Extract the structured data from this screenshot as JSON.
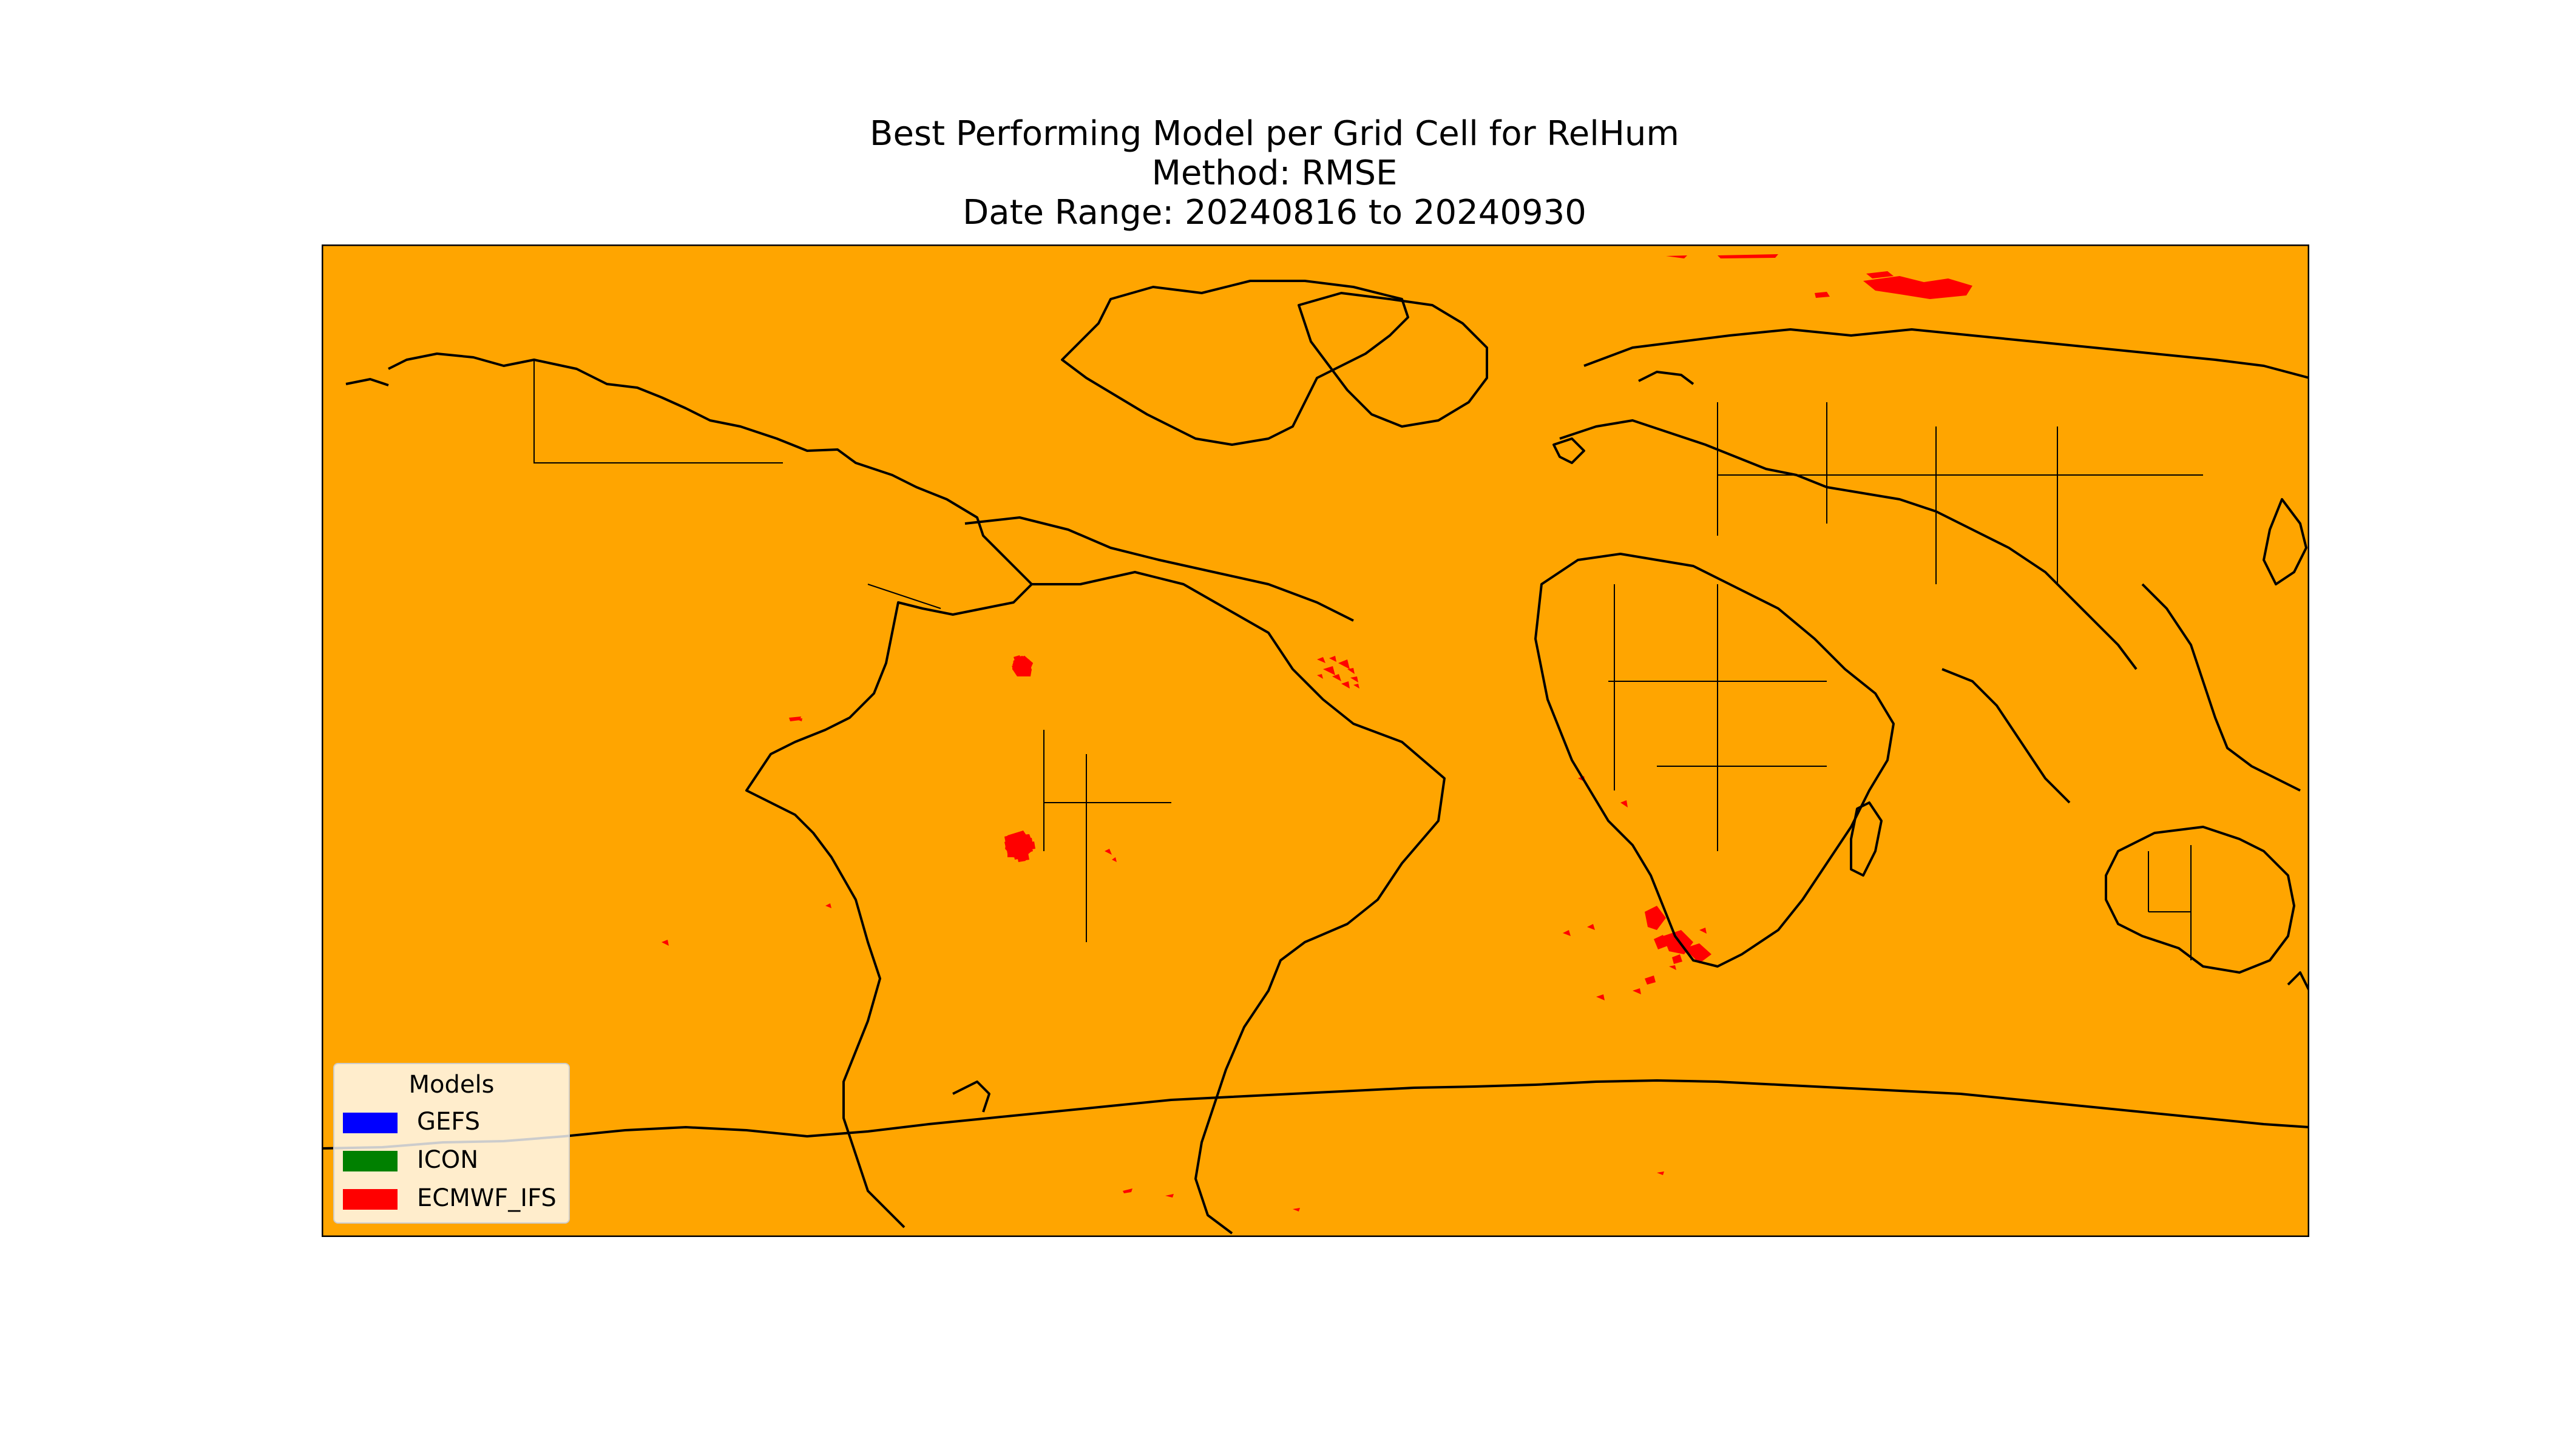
{
  "title": {
    "line1": "Best Performing Model per Grid Cell for RelHum",
    "line2": "Method: RMSE",
    "line3": "Date Range: 20240816 to 20240930"
  },
  "map": {
    "background_color": "#ffa500",
    "coastline_color": "#000000",
    "dominant_model": "ICON"
  },
  "legend": {
    "title": "Models",
    "items": [
      {
        "label": "GEFS",
        "color": "#0000ff"
      },
      {
        "label": "ICON",
        "color": "#008000"
      },
      {
        "label": "ECMWF_IFS",
        "color": "#ff0000"
      }
    ]
  }
}
